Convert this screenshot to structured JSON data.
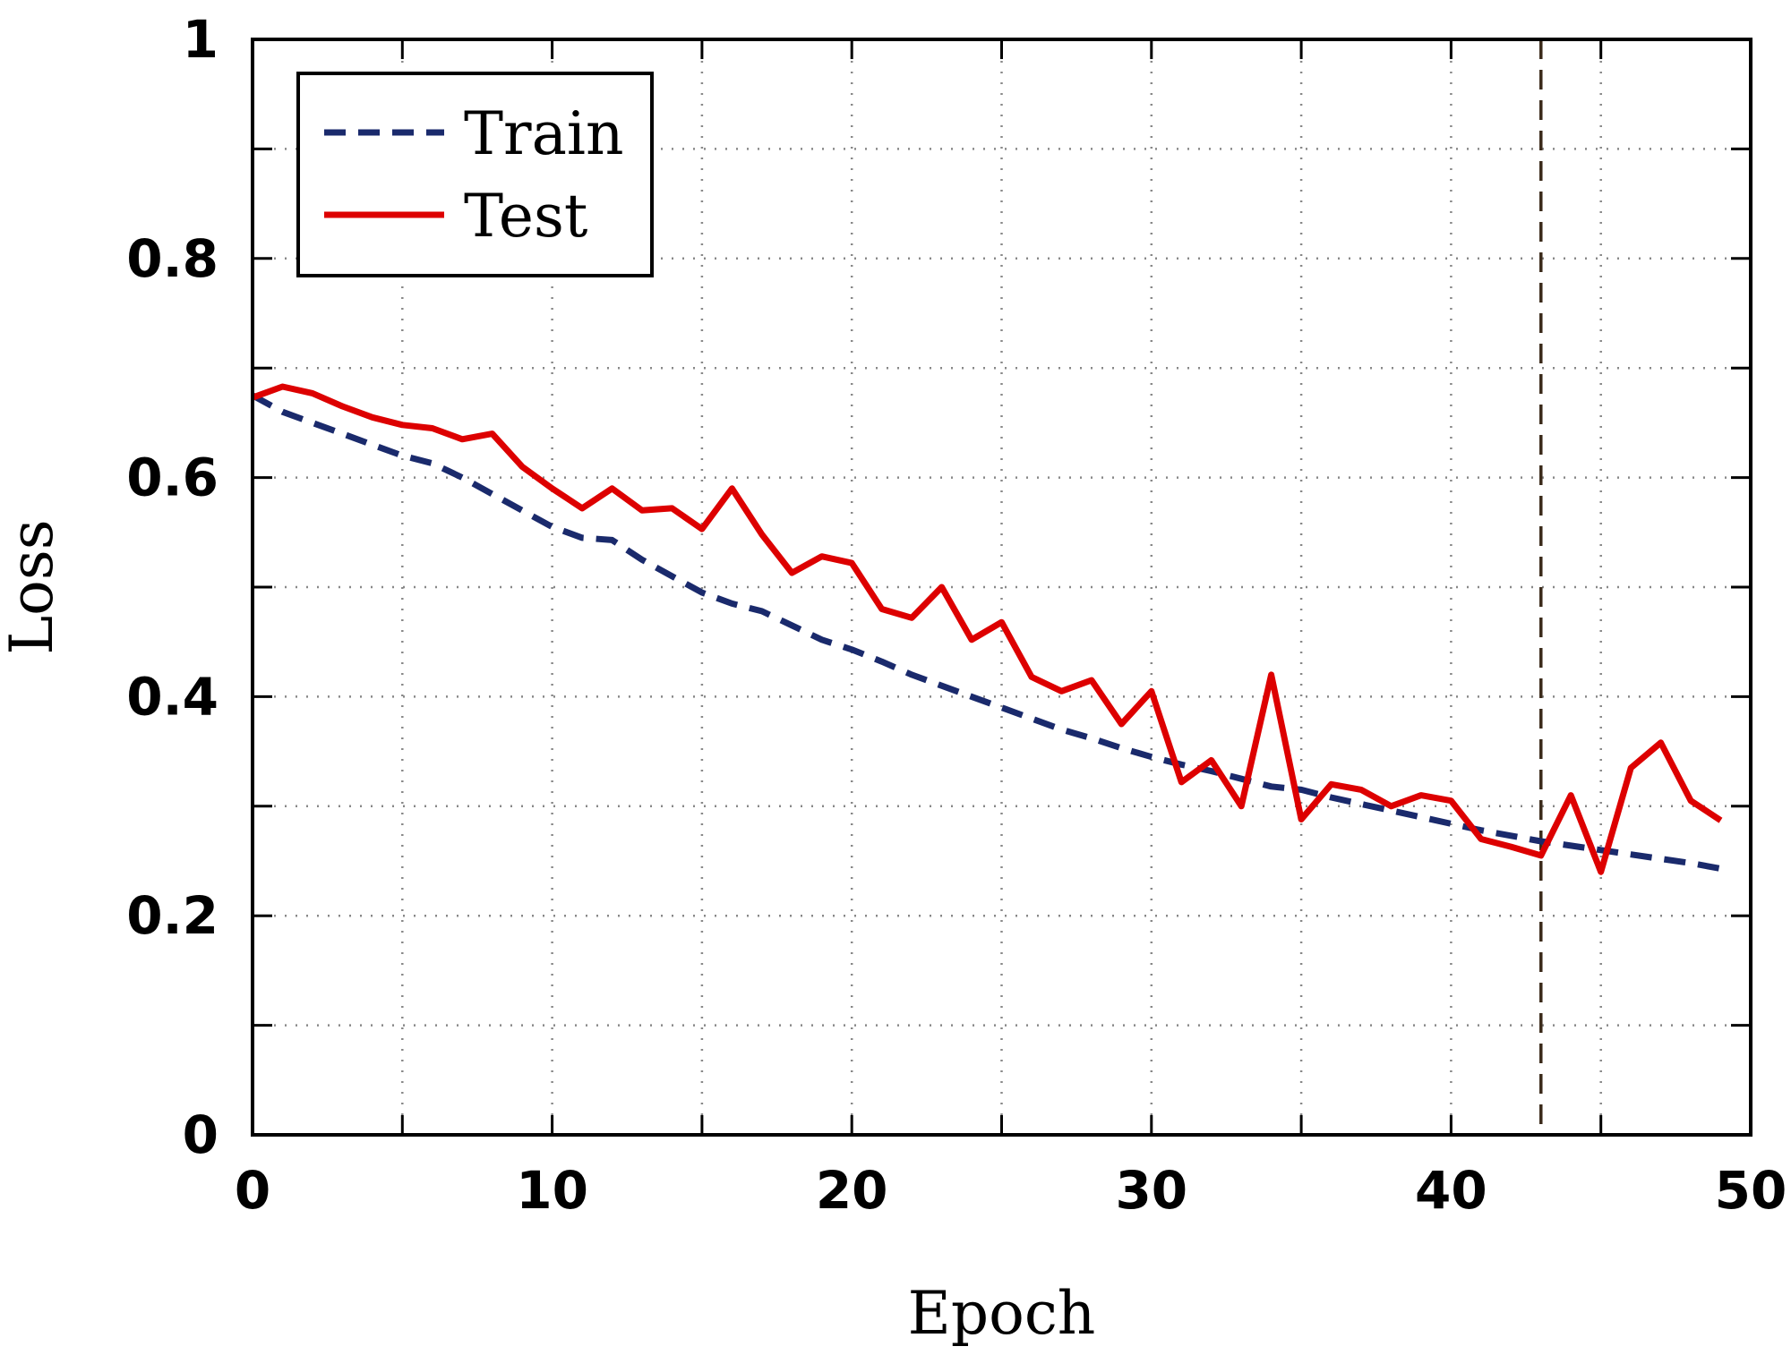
{
  "chart_data": {
    "type": "line",
    "xlabel": "Epoch",
    "ylabel": "Loss",
    "xlim": [
      0,
      50
    ],
    "ylim": [
      0,
      1
    ],
    "xticks": [
      "0",
      "10",
      "20",
      "30",
      "40",
      "50"
    ],
    "yticks": [
      "0",
      "0.2",
      "0.4",
      "0.6",
      "0.8",
      "1"
    ],
    "grid": true,
    "legend_position": "top-left",
    "vline_x": 43,
    "vline_color": "#3b2a1a",
    "series": [
      {
        "name": "Train",
        "color": "#1a2a6c",
        "style": "dashed",
        "x": [
          0,
          1,
          2,
          3,
          4,
          5,
          6,
          7,
          8,
          9,
          10,
          11,
          12,
          13,
          14,
          15,
          16,
          17,
          18,
          19,
          20,
          21,
          22,
          23,
          24,
          25,
          26,
          27,
          28,
          29,
          30,
          31,
          32,
          33,
          34,
          35,
          36,
          37,
          38,
          39,
          40,
          41,
          42,
          43,
          44,
          45,
          46,
          47,
          48,
          49
        ],
        "values": [
          0.675,
          0.66,
          0.65,
          0.64,
          0.63,
          0.62,
          0.613,
          0.6,
          0.585,
          0.57,
          0.555,
          0.545,
          0.543,
          0.525,
          0.51,
          0.495,
          0.485,
          0.478,
          0.465,
          0.452,
          0.443,
          0.432,
          0.42,
          0.41,
          0.4,
          0.39,
          0.38,
          0.37,
          0.362,
          0.353,
          0.345,
          0.338,
          0.332,
          0.325,
          0.318,
          0.315,
          0.308,
          0.302,
          0.296,
          0.29,
          0.284,
          0.278,
          0.273,
          0.268,
          0.264,
          0.26,
          0.256,
          0.252,
          0.248,
          0.243
        ]
      },
      {
        "name": "Test",
        "color": "#dd0000",
        "style": "solid",
        "x": [
          0,
          1,
          2,
          3,
          4,
          5,
          6,
          7,
          8,
          9,
          10,
          11,
          12,
          13,
          14,
          15,
          16,
          17,
          18,
          19,
          20,
          21,
          22,
          23,
          24,
          25,
          26,
          27,
          28,
          29,
          30,
          31,
          32,
          33,
          34,
          35,
          36,
          37,
          38,
          39,
          40,
          41,
          42,
          43,
          44,
          45,
          46,
          47,
          48,
          49
        ],
        "values": [
          0.673,
          0.683,
          0.677,
          0.665,
          0.655,
          0.648,
          0.645,
          0.635,
          0.64,
          0.61,
          0.59,
          0.572,
          0.59,
          0.57,
          0.572,
          0.553,
          0.59,
          0.548,
          0.513,
          0.528,
          0.522,
          0.48,
          0.472,
          0.5,
          0.452,
          0.468,
          0.418,
          0.405,
          0.415,
          0.375,
          0.405,
          0.322,
          0.342,
          0.3,
          0.42,
          0.288,
          0.32,
          0.315,
          0.3,
          0.31,
          0.305,
          0.27,
          0.263,
          0.255,
          0.31,
          0.24,
          0.335,
          0.358,
          0.305,
          0.287
        ]
      }
    ]
  }
}
